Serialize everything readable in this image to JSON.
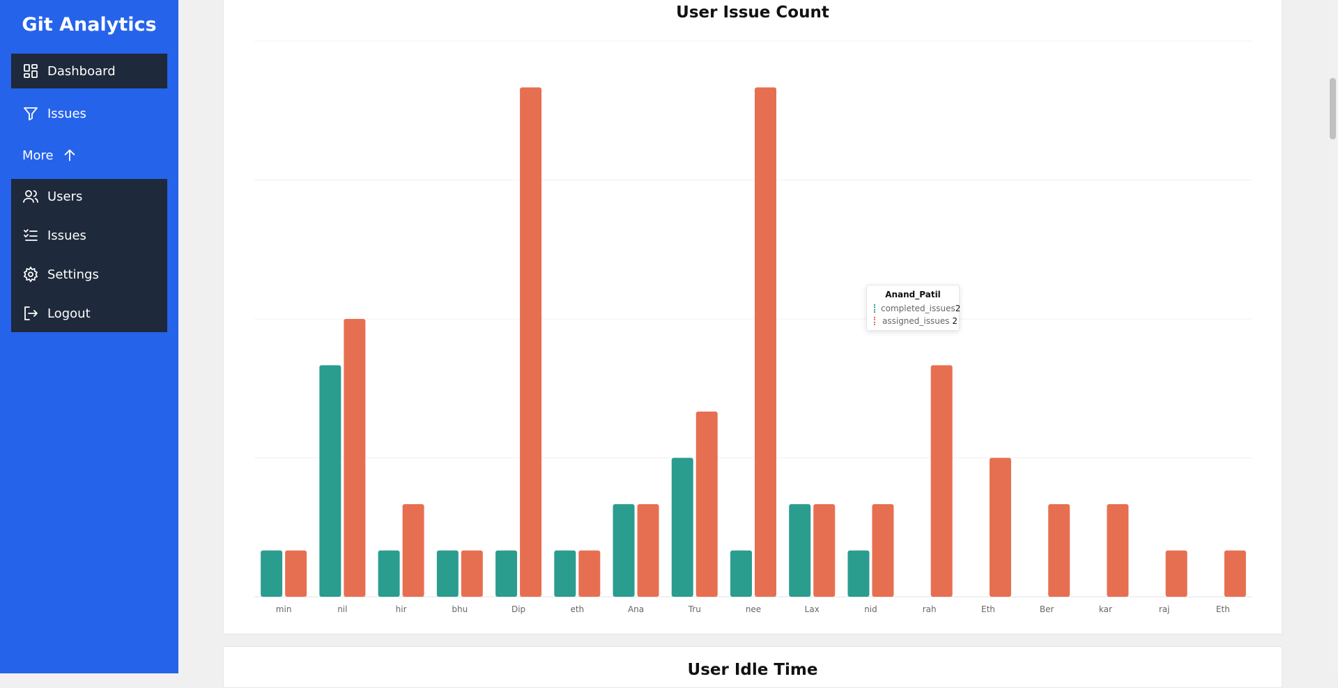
{
  "sidebar": {
    "brand": "Git Analytics",
    "items": [
      {
        "label": "Dashboard",
        "icon": "dashboard-icon"
      },
      {
        "label": "Issues",
        "icon": "filter-icon"
      }
    ],
    "more_label": "More",
    "submenu": [
      {
        "label": "Users",
        "icon": "users-icon"
      },
      {
        "label": "Issues",
        "icon": "list-check-icon"
      },
      {
        "label": "Settings",
        "icon": "gear-icon"
      },
      {
        "label": "Logout",
        "icon": "logout-icon"
      }
    ]
  },
  "colors": {
    "sidebar": "#2563eb",
    "nav_active": "#1e293b",
    "completed": "#2a9d8f",
    "assigned": "#e76f51"
  },
  "chart_data": {
    "type": "bar",
    "title": "User Issue Count",
    "categories": [
      "min",
      "nil",
      "hir",
      "bhu",
      "Dip",
      "eth",
      "Ana",
      "Tru",
      "nee",
      "Lax",
      "nid",
      "rah",
      "Eth",
      "Ber",
      "kar",
      "raj",
      "Eth"
    ],
    "series": [
      {
        "name": "completed_issues",
        "values": [
          1,
          5,
          1,
          1,
          1,
          1,
          2,
          3,
          1,
          2,
          1,
          0,
          0,
          0,
          0,
          0,
          0
        ]
      },
      {
        "name": "assigned_issues",
        "values": [
          1,
          6,
          2,
          1,
          11,
          1,
          2,
          4,
          11,
          2,
          2,
          5,
          3,
          2,
          2,
          1,
          1
        ]
      }
    ],
    "ylim": [
      0,
      12
    ],
    "grid": true,
    "tooltip": {
      "title": "Anand_Patil",
      "rows": [
        {
          "name": "completed_issues",
          "value": "2"
        },
        {
          "name": "assigned_issues",
          "value": "2"
        }
      ]
    }
  },
  "next_card": {
    "title": "User Idle Time"
  }
}
